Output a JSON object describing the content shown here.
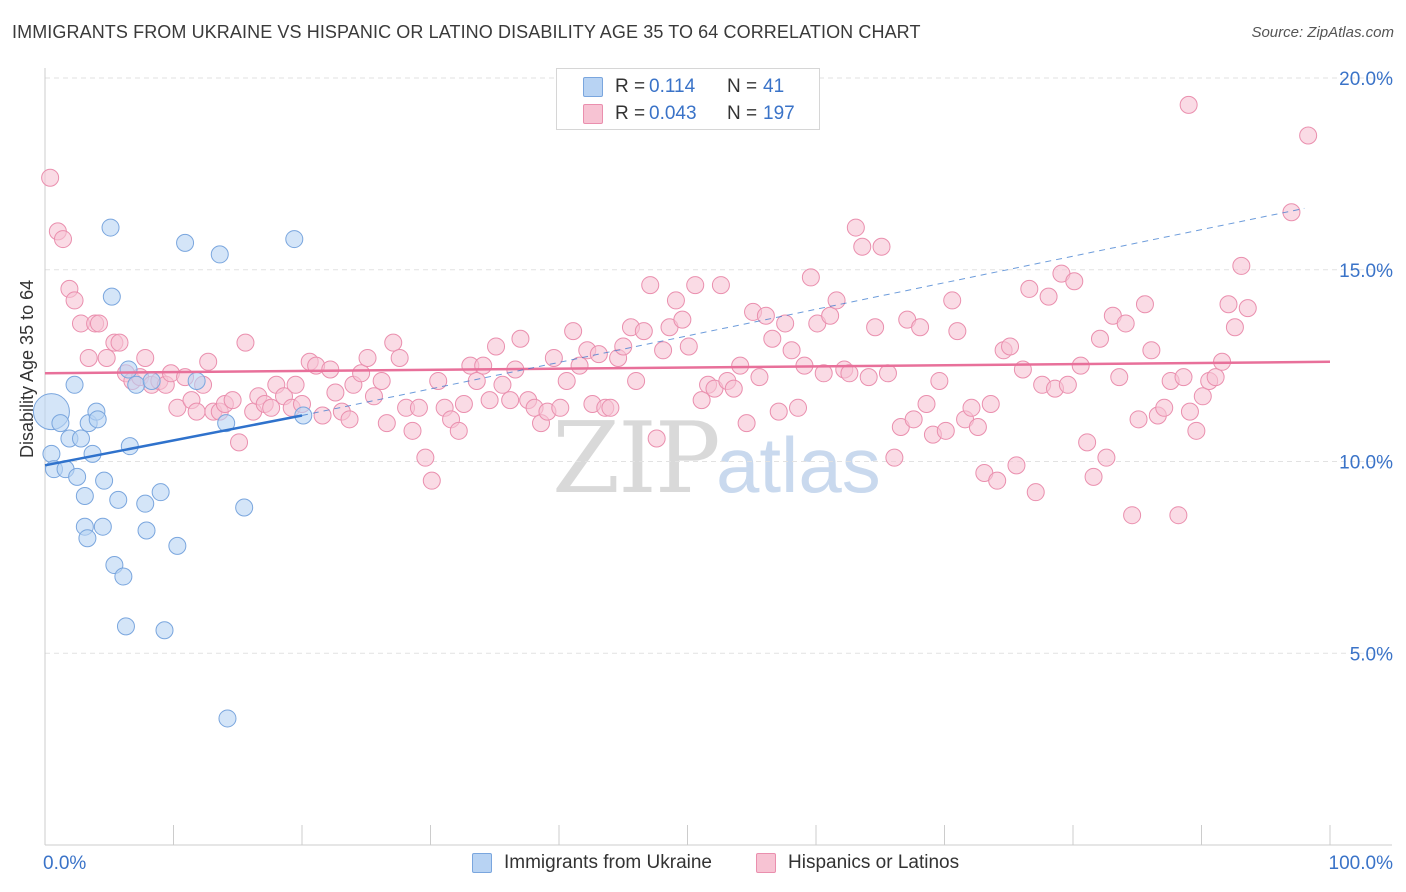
{
  "title": "IMMIGRANTS FROM UKRAINE VS HISPANIC OR LATINO DISABILITY AGE 35 TO 64 CORRELATION CHART",
  "source": "Source: ZipAtlas.com",
  "watermark": {
    "zip": "ZIP",
    "atlas": "atlas"
  },
  "legend": {
    "rows": [
      {
        "r_label": "R =",
        "r_value": "0.114",
        "n_label": "N =",
        "n_value": "41"
      },
      {
        "r_label": "R =",
        "r_value": "0.043",
        "n_label": "N =",
        "n_value": "197"
      }
    ]
  },
  "bottom_legend": [
    "Immigrants from Ukraine",
    "Hispanics or Latinos"
  ],
  "colors": {
    "blue_fill": "#b8d3f3",
    "blue_stroke": "#7aa6de",
    "blue_line": "#2f72cc",
    "pink_fill": "#f7c3d3",
    "pink_stroke": "#ea8fae",
    "pink_line": "#e8709a",
    "grid": "#e2e2e2",
    "tick_label": "#3a73c8"
  },
  "chart_data": {
    "type": "scatter",
    "title": "IMMIGRANTS FROM UKRAINE VS HISPANIC OR LATINO DISABILITY AGE 35 TO 64 CORRELATION CHART",
    "xlabel": "",
    "ylabel": "Disability Age 35 to 64",
    "xlim": [
      0,
      100
    ],
    "ylim": [
      0,
      20
    ],
    "x_tick_labels": [
      "0.0%",
      "100.0%"
    ],
    "y_ticks": [
      5,
      10,
      15,
      20
    ],
    "y_tick_labels": [
      "5.0%",
      "10.0%",
      "15.0%",
      "20.0%"
    ],
    "grid": true,
    "series": [
      {
        "name": "Immigrants from Ukraine",
        "R": 0.114,
        "N": 41,
        "trend": {
          "x0": 0,
          "y0": 9.9,
          "x1": 20,
          "y1": 11.2,
          "dashed_extension_to_x": 98,
          "dashed_y_end": 16.6
        },
        "points": [
          [
            0.5,
            11.3
          ],
          [
            0.5,
            10.2
          ],
          [
            0.7,
            9.8
          ],
          [
            1.2,
            11.0
          ],
          [
            1.6,
            9.8
          ],
          [
            1.9,
            10.6
          ],
          [
            2.3,
            12.0
          ],
          [
            2.5,
            9.6
          ],
          [
            2.8,
            10.6
          ],
          [
            3.1,
            9.1
          ],
          [
            3.1,
            8.3
          ],
          [
            3.3,
            8.0
          ],
          [
            3.4,
            11.0
          ],
          [
            3.7,
            10.2
          ],
          [
            4.0,
            11.3
          ],
          [
            4.1,
            11.1
          ],
          [
            4.5,
            8.3
          ],
          [
            4.6,
            9.5
          ],
          [
            5.1,
            16.1
          ],
          [
            5.2,
            14.3
          ],
          [
            5.4,
            7.3
          ],
          [
            5.7,
            9.0
          ],
          [
            6.1,
            7.0
          ],
          [
            6.3,
            5.7
          ],
          [
            6.5,
            12.4
          ],
          [
            6.6,
            10.4
          ],
          [
            7.1,
            12.0
          ],
          [
            7.8,
            8.9
          ],
          [
            7.9,
            8.2
          ],
          [
            8.3,
            12.1
          ],
          [
            9.0,
            9.2
          ],
          [
            9.3,
            5.6
          ],
          [
            10.3,
            7.8
          ],
          [
            10.9,
            15.7
          ],
          [
            11.8,
            12.1
          ],
          [
            13.6,
            15.4
          ],
          [
            14.1,
            11.0
          ],
          [
            14.2,
            3.3
          ],
          [
            15.5,
            8.8
          ],
          [
            19.4,
            15.8
          ],
          [
            20.1,
            11.2
          ]
        ]
      },
      {
        "name": "Hispanics or Latinos",
        "R": 0.043,
        "N": 197,
        "trend": {
          "x0": 0,
          "y0": 12.3,
          "x1": 100,
          "y1": 12.6
        },
        "points": [
          [
            0.4,
            17.4
          ],
          [
            1.0,
            16.0
          ],
          [
            1.4,
            15.8
          ],
          [
            1.9,
            14.5
          ],
          [
            2.3,
            14.2
          ],
          [
            2.8,
            13.6
          ],
          [
            3.4,
            12.7
          ],
          [
            3.9,
            13.6
          ],
          [
            4.2,
            13.6
          ],
          [
            4.8,
            12.7
          ],
          [
            5.4,
            13.1
          ],
          [
            5.8,
            13.1
          ],
          [
            6.3,
            12.3
          ],
          [
            6.8,
            12.1
          ],
          [
            7.4,
            12.2
          ],
          [
            7.8,
            12.7
          ],
          [
            8.3,
            12.0
          ],
          [
            8.9,
            12.1
          ],
          [
            9.4,
            12.0
          ],
          [
            9.8,
            12.3
          ],
          [
            10.3,
            11.4
          ],
          [
            10.9,
            12.2
          ],
          [
            11.4,
            11.6
          ],
          [
            11.8,
            11.3
          ],
          [
            12.3,
            12.0
          ],
          [
            12.7,
            12.6
          ],
          [
            13.1,
            11.3
          ],
          [
            13.6,
            11.3
          ],
          [
            14.0,
            11.5
          ],
          [
            14.6,
            11.6
          ],
          [
            15.1,
            10.5
          ],
          [
            15.6,
            13.1
          ],
          [
            16.2,
            11.3
          ],
          [
            16.6,
            11.7
          ],
          [
            17.1,
            11.5
          ],
          [
            17.6,
            11.4
          ],
          [
            18.0,
            12.0
          ],
          [
            18.6,
            11.7
          ],
          [
            19.2,
            11.4
          ],
          [
            19.5,
            12.0
          ],
          [
            20.0,
            11.5
          ],
          [
            20.6,
            12.6
          ],
          [
            21.1,
            12.5
          ],
          [
            21.6,
            11.2
          ],
          [
            22.2,
            12.4
          ],
          [
            22.6,
            11.8
          ],
          [
            23.1,
            11.3
          ],
          [
            23.7,
            11.1
          ],
          [
            24.0,
            12.0
          ],
          [
            24.6,
            12.3
          ],
          [
            25.1,
            12.7
          ],
          [
            25.6,
            11.7
          ],
          [
            26.2,
            12.1
          ],
          [
            26.6,
            11.0
          ],
          [
            27.1,
            13.1
          ],
          [
            27.6,
            12.7
          ],
          [
            28.1,
            11.4
          ],
          [
            28.6,
            10.8
          ],
          [
            29.1,
            11.4
          ],
          [
            29.6,
            10.1
          ],
          [
            30.1,
            9.5
          ],
          [
            30.6,
            12.1
          ],
          [
            31.1,
            11.4
          ],
          [
            31.6,
            11.1
          ],
          [
            32.2,
            10.8
          ],
          [
            32.6,
            11.5
          ],
          [
            33.1,
            12.5
          ],
          [
            33.6,
            12.1
          ],
          [
            34.1,
            12.5
          ],
          [
            34.6,
            11.6
          ],
          [
            35.1,
            13.0
          ],
          [
            35.6,
            12.0
          ],
          [
            36.2,
            11.6
          ],
          [
            36.6,
            12.4
          ],
          [
            37.0,
            13.2
          ],
          [
            37.6,
            11.6
          ],
          [
            38.1,
            11.4
          ],
          [
            38.6,
            11.0
          ],
          [
            39.1,
            11.3
          ],
          [
            39.6,
            12.7
          ],
          [
            40.1,
            11.4
          ],
          [
            40.6,
            12.1
          ],
          [
            41.1,
            13.4
          ],
          [
            41.6,
            12.5
          ],
          [
            42.2,
            12.9
          ],
          [
            42.6,
            11.5
          ],
          [
            43.1,
            12.8
          ],
          [
            43.6,
            11.4
          ],
          [
            44.0,
            11.4
          ],
          [
            44.6,
            12.7
          ],
          [
            45.0,
            13.0
          ],
          [
            45.6,
            13.5
          ],
          [
            46.0,
            12.1
          ],
          [
            46.6,
            13.4
          ],
          [
            47.1,
            14.6
          ],
          [
            47.6,
            10.6
          ],
          [
            48.1,
            12.9
          ],
          [
            48.6,
            13.5
          ],
          [
            49.1,
            14.2
          ],
          [
            49.6,
            13.7
          ],
          [
            50.1,
            13.0
          ],
          [
            50.6,
            14.6
          ],
          [
            51.1,
            11.6
          ],
          [
            51.6,
            12.0
          ],
          [
            52.1,
            11.9
          ],
          [
            52.6,
            14.6
          ],
          [
            53.1,
            12.1
          ],
          [
            53.6,
            11.9
          ],
          [
            54.1,
            12.5
          ],
          [
            54.6,
            11.0
          ],
          [
            55.1,
            13.9
          ],
          [
            55.6,
            12.2
          ],
          [
            56.1,
            13.8
          ],
          [
            56.6,
            13.2
          ],
          [
            57.1,
            11.3
          ],
          [
            57.6,
            13.6
          ],
          [
            58.1,
            12.9
          ],
          [
            58.6,
            11.4
          ],
          [
            59.1,
            12.5
          ],
          [
            59.6,
            14.8
          ],
          [
            60.1,
            13.6
          ],
          [
            60.6,
            12.3
          ],
          [
            61.1,
            13.8
          ],
          [
            61.6,
            14.2
          ],
          [
            62.2,
            12.4
          ],
          [
            62.6,
            12.3
          ],
          [
            63.1,
            16.1
          ],
          [
            63.6,
            15.6
          ],
          [
            64.1,
            12.2
          ],
          [
            64.6,
            13.5
          ],
          [
            65.1,
            15.6
          ],
          [
            65.6,
            12.3
          ],
          [
            66.1,
            10.1
          ],
          [
            66.6,
            10.9
          ],
          [
            67.1,
            13.7
          ],
          [
            67.6,
            11.1
          ],
          [
            68.1,
            13.5
          ],
          [
            68.6,
            11.5
          ],
          [
            69.1,
            10.7
          ],
          [
            69.6,
            12.1
          ],
          [
            70.1,
            10.8
          ],
          [
            70.6,
            14.2
          ],
          [
            71.0,
            13.4
          ],
          [
            71.6,
            11.1
          ],
          [
            72.1,
            11.4
          ],
          [
            72.6,
            10.9
          ],
          [
            73.1,
            9.7
          ],
          [
            73.6,
            11.5
          ],
          [
            74.1,
            9.5
          ],
          [
            74.6,
            12.9
          ],
          [
            75.1,
            13.0
          ],
          [
            75.6,
            9.9
          ],
          [
            76.1,
            12.4
          ],
          [
            76.6,
            14.5
          ],
          [
            77.1,
            9.2
          ],
          [
            77.6,
            12.0
          ],
          [
            78.1,
            14.3
          ],
          [
            78.6,
            11.9
          ],
          [
            79.1,
            14.9
          ],
          [
            79.6,
            12.0
          ],
          [
            80.1,
            14.7
          ],
          [
            80.6,
            12.5
          ],
          [
            81.1,
            10.5
          ],
          [
            81.6,
            9.6
          ],
          [
            82.1,
            13.2
          ],
          [
            82.6,
            10.1
          ],
          [
            83.1,
            13.8
          ],
          [
            83.6,
            12.2
          ],
          [
            84.1,
            13.6
          ],
          [
            84.6,
            8.6
          ],
          [
            85.1,
            11.1
          ],
          [
            85.6,
            14.1
          ],
          [
            86.1,
            12.9
          ],
          [
            86.6,
            11.2
          ],
          [
            87.1,
            11.4
          ],
          [
            87.6,
            12.1
          ],
          [
            88.2,
            8.6
          ],
          [
            88.6,
            12.2
          ],
          [
            89.1,
            11.3
          ],
          [
            89.6,
            10.8
          ],
          [
            90.1,
            11.7
          ],
          [
            90.6,
            12.1
          ],
          [
            91.1,
            12.2
          ],
          [
            91.6,
            12.6
          ],
          [
            92.1,
            14.1
          ],
          [
            92.6,
            13.5
          ],
          [
            93.1,
            15.1
          ],
          [
            93.6,
            14.0
          ],
          [
            89.0,
            19.3
          ],
          [
            98.3,
            18.5
          ],
          [
            97.0,
            16.5
          ]
        ]
      }
    ]
  }
}
